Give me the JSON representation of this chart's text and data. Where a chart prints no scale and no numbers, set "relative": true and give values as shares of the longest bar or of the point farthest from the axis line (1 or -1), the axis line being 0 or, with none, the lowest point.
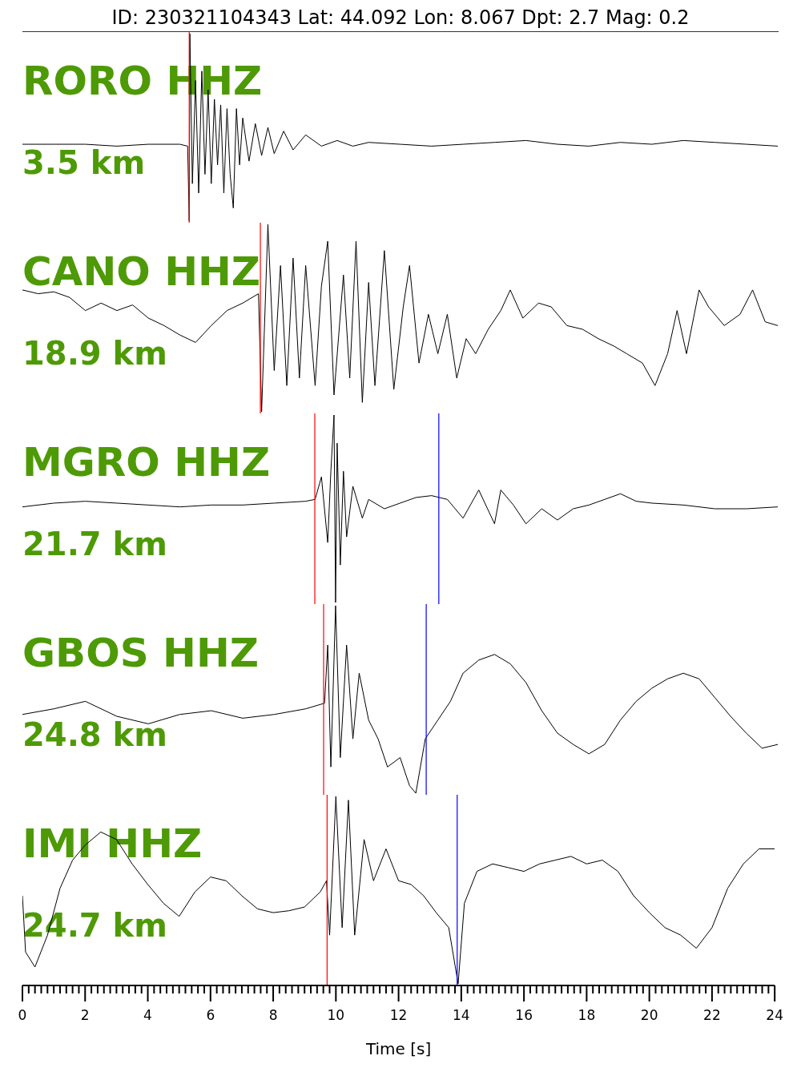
{
  "chart_data": [
    {
      "type": "line",
      "title": "ID: 230321104343 Lat:  44.092 Lon:   8.067 Dpt:     2.7 Mag:   0.2",
      "annotations": [
        "RORO HHZ",
        "3.5 km"
      ],
      "relative": true,
      "legend": false,
      "grid": false,
      "marker": "none",
      "tick_labels": false,
      "xlim": [
        0,
        24
      ],
      "color": "#000000",
      "x": [
        0,
        1,
        2,
        3,
        4,
        5,
        5.25,
        5.3,
        5.32,
        5.4,
        5.5,
        5.6,
        5.7,
        5.8,
        5.9,
        6.0,
        6.1,
        6.2,
        6.3,
        6.4,
        6.5,
        6.6,
        6.7,
        6.8,
        6.9,
        7.0,
        7.2,
        7.4,
        7.6,
        7.8,
        8.0,
        8.3,
        8.6,
        9,
        9.5,
        10,
        10.5,
        11,
        12,
        13,
        14,
        15,
        16,
        17,
        18,
        19,
        20,
        21,
        22,
        23,
        24
      ],
      "values": [
        0.41,
        0.41,
        0.41,
        0.4,
        0.41,
        0.41,
        0.4,
        0,
        1,
        0.2,
        0.75,
        0.15,
        0.8,
        0.25,
        0.7,
        0.2,
        0.65,
        0.3,
        0.62,
        0.15,
        0.6,
        0.25,
        0.07,
        0.6,
        0.3,
        0.55,
        0.32,
        0.52,
        0.35,
        0.5,
        0.36,
        0.48,
        0.38,
        0.46,
        0.4,
        0.43,
        0.4,
        0.42,
        0.41,
        0.4,
        0.41,
        0.42,
        0.43,
        0.41,
        0.4,
        0.42,
        0.41,
        0.43,
        0.42,
        0.41,
        0.4
      ],
      "ref_lines": [
        {
          "axis": "x",
          "value": 5.3,
          "color": "#ff0000"
        }
      ]
    },
    {
      "type": "line",
      "annotations": [
        "CANO HHZ",
        "18.9 km"
      ],
      "relative": true,
      "legend": false,
      "grid": false,
      "marker": "none",
      "tick_labels": false,
      "xlim": [
        0,
        24
      ],
      "color": "#000000",
      "x": [
        0,
        0.5,
        1,
        1.5,
        2,
        2.5,
        3,
        3.5,
        4,
        4.5,
        5,
        5.5,
        6,
        6.5,
        7,
        7.5,
        7.6,
        7.8,
        8.0,
        8.2,
        8.4,
        8.6,
        8.8,
        9.0,
        9.3,
        9.5,
        9.7,
        9.9,
        10.2,
        10.4,
        10.6,
        10.8,
        11.0,
        11.2,
        11.5,
        11.8,
        12.1,
        12.3,
        12.6,
        12.9,
        13.2,
        13.5,
        13.8,
        14.1,
        14.4,
        14.8,
        15.2,
        15.5,
        15.9,
        16.4,
        16.8,
        17.3,
        17.8,
        18.3,
        18.8,
        19.2,
        19.7,
        20.1,
        20.5,
        20.8,
        21.1,
        21.5,
        21.8,
        22.3,
        22.8,
        23.2,
        23.6,
        24
      ],
      "values": [
        0.65,
        0.63,
        0.64,
        0.61,
        0.54,
        0.58,
        0.54,
        0.57,
        0.5,
        0.46,
        0.41,
        0.37,
        0.46,
        0.54,
        0.58,
        0.63,
        0,
        1,
        0.22,
        0.78,
        0.14,
        0.82,
        0.18,
        0.78,
        0.14,
        0.67,
        0.91,
        0.09,
        0.73,
        0.18,
        0.91,
        0.05,
        0.69,
        0.14,
        0.86,
        0.12,
        0.56,
        0.78,
        0.26,
        0.52,
        0.31,
        0.52,
        0.18,
        0.39,
        0.31,
        0.44,
        0.54,
        0.65,
        0.5,
        0.58,
        0.56,
        0.46,
        0.44,
        0.39,
        0.35,
        0.31,
        0.26,
        0.14,
        0.31,
        0.54,
        0.31,
        0.65,
        0.56,
        0.46,
        0.52,
        0.65,
        0.48,
        0.46
      ],
      "ref_lines": [
        {
          "axis": "x",
          "value": 7.56,
          "color": "#ff0000"
        }
      ]
    },
    {
      "type": "line",
      "annotations": [
        "MGRO HHZ",
        "21.7 km"
      ],
      "relative": true,
      "legend": false,
      "grid": false,
      "marker": "none",
      "tick_labels": false,
      "xlim": [
        0,
        24
      ],
      "color": "#000000",
      "x": [
        0,
        1,
        2,
        3,
        4,
        5,
        6,
        7,
        8,
        9,
        9.3,
        9.5,
        9.7,
        9.8,
        9.9,
        9.95,
        10.0,
        10.1,
        10.2,
        10.3,
        10.5,
        10.8,
        11,
        11.5,
        12,
        12.5,
        13,
        13.5,
        14,
        14.5,
        15,
        15.2,
        15.6,
        16,
        16.5,
        17,
        17.5,
        18,
        18.5,
        19,
        19.5,
        20,
        21,
        22,
        23,
        24
      ],
      "values": [
        0.51,
        0.53,
        0.54,
        0.53,
        0.52,
        0.51,
        0.52,
        0.52,
        0.53,
        0.54,
        0.55,
        0.67,
        0.32,
        0.7,
        1.0,
        0.0,
        0.85,
        0.2,
        0.7,
        0.35,
        0.62,
        0.45,
        0.55,
        0.5,
        0.53,
        0.56,
        0.57,
        0.55,
        0.45,
        0.6,
        0.42,
        0.6,
        0.52,
        0.42,
        0.5,
        0.44,
        0.5,
        0.52,
        0.55,
        0.58,
        0.54,
        0.53,
        0.52,
        0.5,
        0.5,
        0.51
      ],
      "ref_lines": [
        {
          "axis": "x",
          "value": 9.29,
          "color": "#ff0000"
        },
        {
          "axis": "x",
          "value": 13.23,
          "color": "#0000ff"
        }
      ]
    },
    {
      "type": "line",
      "annotations": [
        "GBOS HHZ",
        "24.8 km"
      ],
      "relative": true,
      "legend": false,
      "grid": false,
      "marker": "none",
      "tick_labels": false,
      "xlim": [
        0,
        24
      ],
      "color": "#000000",
      "x": [
        0,
        1,
        2,
        3,
        4,
        5,
        6,
        7,
        8,
        9,
        9.6,
        9.7,
        9.8,
        9.95,
        10.1,
        10.3,
        10.5,
        10.7,
        11,
        11.3,
        11.6,
        12,
        12.3,
        12.5,
        12.8,
        13.2,
        13.6,
        14,
        14.5,
        15,
        15.5,
        16,
        16.5,
        17,
        17.5,
        18,
        18.5,
        19,
        19.5,
        20,
        20.5,
        21,
        21.5,
        22,
        22.5,
        23,
        23.5,
        24
      ],
      "values": [
        0.42,
        0.45,
        0.49,
        0.41,
        0.37,
        0.42,
        0.44,
        0.4,
        0.42,
        0.45,
        0.48,
        0.79,
        0.14,
        1.0,
        0.19,
        0.79,
        0.29,
        0.64,
        0.39,
        0.29,
        0.14,
        0.19,
        0.04,
        0,
        0.29,
        0.39,
        0.49,
        0.64,
        0.71,
        0.74,
        0.69,
        0.59,
        0.44,
        0.32,
        0.26,
        0.21,
        0.26,
        0.39,
        0.49,
        0.56,
        0.61,
        0.64,
        0.61,
        0.51,
        0.41,
        0.32,
        0.24,
        0.26
      ],
      "ref_lines": [
        {
          "axis": "x",
          "value": 9.57,
          "color": "#ff0000"
        },
        {
          "axis": "x",
          "value": 12.83,
          "color": "#0000ff"
        }
      ]
    },
    {
      "type": "line",
      "xlabel": "Time [s]",
      "annotations": [
        "IMI HHZ",
        "24.7 km"
      ],
      "relative": true,
      "legend": false,
      "grid": false,
      "marker": "none",
      "tick_labels": "x",
      "xlim": [
        0,
        24
      ],
      "color": "#000000",
      "xticks": [
        0,
        {
          "value": 0.2,
          "label": null
        },
        {
          "value": 0.4,
          "label": null
        },
        {
          "value": 0.6,
          "label": null
        },
        {
          "value": 0.8,
          "label": null
        },
        {
          "value": 1,
          "label": null
        },
        {
          "value": 1.2,
          "label": null
        },
        {
          "value": 1.4,
          "label": null
        },
        {
          "value": 1.6,
          "label": null
        },
        {
          "value": 1.8,
          "label": null
        },
        2,
        {
          "value": 2.2,
          "label": null
        },
        {
          "value": 2.4,
          "label": null
        },
        {
          "value": 2.6,
          "label": null
        },
        {
          "value": 2.8,
          "label": null
        },
        {
          "value": 3,
          "label": null
        },
        {
          "value": 3.2,
          "label": null
        },
        {
          "value": 3.4,
          "label": null
        },
        {
          "value": 3.6,
          "label": null
        },
        {
          "value": 3.8,
          "label": null
        },
        4,
        {
          "value": 4.2,
          "label": null
        },
        {
          "value": 4.4,
          "label": null
        },
        {
          "value": 4.6,
          "label": null
        },
        {
          "value": 4.8,
          "label": null
        },
        {
          "value": 5,
          "label": null
        },
        {
          "value": 5.2,
          "label": null
        },
        {
          "value": 5.4,
          "label": null
        },
        {
          "value": 5.6,
          "label": null
        },
        {
          "value": 5.8,
          "label": null
        },
        6,
        {
          "value": 6.2,
          "label": null
        },
        {
          "value": 6.4,
          "label": null
        },
        {
          "value": 6.6,
          "label": null
        },
        {
          "value": 6.8,
          "label": null
        },
        {
          "value": 7,
          "label": null
        },
        {
          "value": 7.2,
          "label": null
        },
        {
          "value": 7.4,
          "label": null
        },
        {
          "value": 7.6,
          "label": null
        },
        {
          "value": 7.8,
          "label": null
        },
        8,
        {
          "value": 8.2,
          "label": null
        },
        {
          "value": 8.4,
          "label": null
        },
        {
          "value": 8.6,
          "label": null
        },
        {
          "value": 8.8,
          "label": null
        },
        {
          "value": 9,
          "label": null
        },
        {
          "value": 9.2,
          "label": null
        },
        {
          "value": 9.4,
          "label": null
        },
        {
          "value": 9.6,
          "label": null
        },
        {
          "value": 9.8,
          "label": null
        },
        10,
        {
          "value": 10.2,
          "label": null
        },
        {
          "value": 10.4,
          "label": null
        },
        {
          "value": 10.6,
          "label": null
        },
        {
          "value": 10.8,
          "label": null
        },
        {
          "value": 11,
          "label": null
        },
        {
          "value": 11.2,
          "label": null
        },
        {
          "value": 11.4,
          "label": null
        },
        {
          "value": 11.6,
          "label": null
        },
        {
          "value": 11.8,
          "label": null
        },
        12,
        {
          "value": 12.2,
          "label": null
        },
        {
          "value": 12.4,
          "label": null
        },
        {
          "value": 12.6,
          "label": null
        },
        {
          "value": 12.8,
          "label": null
        },
        {
          "value": 13,
          "label": null
        },
        {
          "value": 13.2,
          "label": null
        },
        {
          "value": 13.4,
          "label": null
        },
        {
          "value": 13.6,
          "label": null
        },
        {
          "value": 13.8,
          "label": null
        },
        14,
        {
          "value": 14.2,
          "label": null
        },
        {
          "value": 14.4,
          "label": null
        },
        {
          "value": 14.6,
          "label": null
        },
        {
          "value": 14.8,
          "label": null
        },
        {
          "value": 15,
          "label": null
        },
        {
          "value": 15.2,
          "label": null
        },
        {
          "value": 15.4,
          "label": null
        },
        {
          "value": 15.6,
          "label": null
        },
        {
          "value": 15.8,
          "label": null
        },
        16,
        {
          "value": 16.2,
          "label": null
        },
        {
          "value": 16.4,
          "label": null
        },
        {
          "value": 16.6,
          "label": null
        },
        {
          "value": 16.8,
          "label": null
        },
        {
          "value": 17,
          "label": null
        },
        {
          "value": 17.2,
          "label": null
        },
        {
          "value": 17.4,
          "label": null
        },
        {
          "value": 17.6,
          "label": null
        },
        {
          "value": 17.8,
          "label": null
        },
        18,
        {
          "value": 18.2,
          "label": null
        },
        {
          "value": 18.4,
          "label": null
        },
        {
          "value": 18.6,
          "label": null
        },
        {
          "value": 18.8,
          "label": null
        },
        {
          "value": 19,
          "label": null
        },
        {
          "value": 19.2,
          "label": null
        },
        {
          "value": 19.4,
          "label": null
        },
        {
          "value": 19.6,
          "label": null
        },
        {
          "value": 19.8,
          "label": null
        },
        20,
        {
          "value": 20.2,
          "label": null
        },
        {
          "value": 20.4,
          "label": null
        },
        {
          "value": 20.6,
          "label": null
        },
        {
          "value": 20.8,
          "label": null
        },
        {
          "value": 21,
          "label": null
        },
        {
          "value": 21.2,
          "label": null
        },
        {
          "value": 21.4,
          "label": null
        },
        {
          "value": 21.6,
          "label": null
        },
        {
          "value": 21.8,
          "label": null
        },
        22,
        {
          "value": 22.2,
          "label": null
        },
        {
          "value": 22.4,
          "label": null
        },
        {
          "value": 22.6,
          "label": null
        },
        {
          "value": 22.8,
          "label": null
        },
        {
          "value": 23,
          "label": null
        },
        {
          "value": 23.2,
          "label": null
        },
        {
          "value": 23.4,
          "label": null
        },
        {
          "value": 23.6,
          "label": null
        },
        {
          "value": 23.8,
          "label": null
        },
        24
      ],
      "x": [
        0,
        0.1,
        0.4,
        0.8,
        1.2,
        1.6,
        2,
        2.5,
        3,
        3.5,
        4,
        4.5,
        5,
        5.5,
        6,
        6.5,
        7,
        7.5,
        8,
        8.5,
        9,
        9.5,
        9.7,
        9.8,
        10,
        10.2,
        10.4,
        10.6,
        10.9,
        11.2,
        11.6,
        12,
        12.4,
        12.8,
        13.2,
        13.6,
        13.9,
        14.1,
        14.5,
        15,
        15.5,
        16,
        16.5,
        17,
        17.5,
        18,
        18.5,
        19,
        19.5,
        20,
        20.5,
        21,
        21.5,
        22,
        22.5,
        23,
        23.5,
        24
      ],
      "values": [
        0.47,
        0.17,
        0.09,
        0.26,
        0.51,
        0.66,
        0.74,
        0.81,
        0.77,
        0.64,
        0.53,
        0.43,
        0.36,
        0.49,
        0.57,
        0.55,
        0.47,
        0.4,
        0.38,
        0.39,
        0.41,
        0.49,
        0.55,
        0.26,
        1,
        0.3,
        0.98,
        0.26,
        0.77,
        0.55,
        0.72,
        0.55,
        0.53,
        0.47,
        0.38,
        0.3,
        0.0,
        0.43,
        0.6,
        0.64,
        0.62,
        0.6,
        0.64,
        0.66,
        0.68,
        0.64,
        0.66,
        0.6,
        0.47,
        0.38,
        0.3,
        0.26,
        0.19,
        0.3,
        0.51,
        0.64,
        0.72,
        0.72
      ],
      "ref_lines": [
        {
          "axis": "x",
          "value": 9.72,
          "color": "#ff0000"
        },
        {
          "axis": "x",
          "value": 13.87,
          "color": "#0000ff"
        }
      ]
    }
  ]
}
